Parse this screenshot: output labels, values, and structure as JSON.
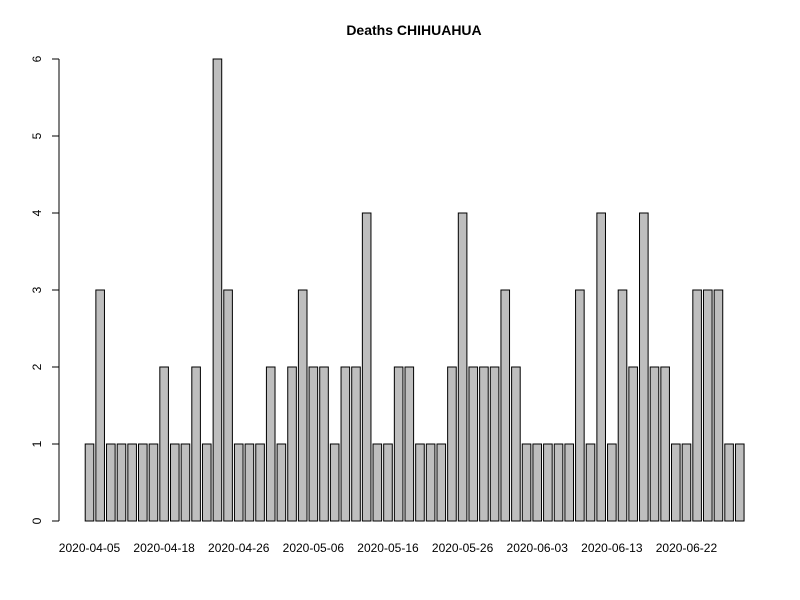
{
  "chart_data": {
    "type": "bar",
    "title": "Deaths CHIHUAHUA",
    "xlabel": "",
    "ylabel": "",
    "values": [
      1,
      3,
      1,
      1,
      1,
      1,
      1,
      2,
      1,
      1,
      2,
      1,
      6,
      3,
      1,
      1,
      1,
      2,
      1,
      2,
      3,
      2,
      2,
      1,
      2,
      2,
      4,
      1,
      1,
      2,
      2,
      1,
      1,
      1,
      2,
      4,
      2,
      2,
      2,
      3,
      2,
      1,
      1,
      1,
      1,
      1,
      3,
      1,
      4,
      1,
      3,
      2,
      4,
      2,
      2,
      1,
      1,
      3,
      3,
      3,
      1,
      1
    ],
    "x_tick_labels": [
      {
        "label": "2020-04-05",
        "index": 0
      },
      {
        "label": "2020-04-18",
        "index": 7
      },
      {
        "label": "2020-04-26",
        "index": 14
      },
      {
        "label": "2020-05-06",
        "index": 21
      },
      {
        "label": "2020-05-16",
        "index": 28
      },
      {
        "label": "2020-05-26",
        "index": 35
      },
      {
        "label": "2020-06-03",
        "index": 42
      },
      {
        "label": "2020-06-13",
        "index": 49
      },
      {
        "label": "2020-06-22",
        "index": 56
      }
    ],
    "y_ticks": [
      0,
      1,
      2,
      3,
      4,
      5,
      6
    ],
    "ylim": [
      0,
      6
    ],
    "grid": false,
    "legend": "none",
    "colors": {
      "bar_fill": "#bebebe",
      "bar_stroke": "#000000",
      "background": "#ffffff"
    }
  }
}
